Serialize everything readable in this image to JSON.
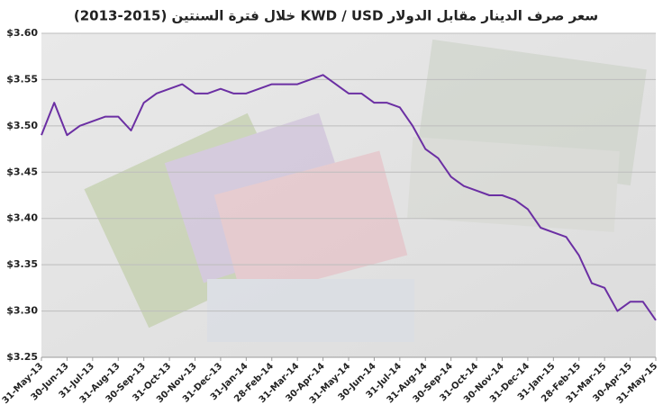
{
  "chart_data": {
    "type": "line",
    "title": "سعر صرف الدينار مقابل الدولار KWD / USD خلال فترة السنتين (2015-2013)",
    "categories": [
      "31-May-13",
      null,
      "30-Jun-13",
      null,
      "31-Jul-13",
      null,
      "31-Aug-13",
      null,
      "30-Sep-13",
      null,
      "31-Oct-13",
      null,
      "30-Nov-13",
      null,
      "31-Dec-13",
      null,
      "31-Jan-14",
      null,
      "28-Feb-14",
      null,
      "31-Mar-14",
      null,
      "30-Apr-14",
      null,
      "31-May-14",
      null,
      "30-Jun-14",
      null,
      "31-Jul-14",
      null,
      "31-Aug-14",
      null,
      "30-Sep-14",
      null,
      "31-Oct-14",
      null,
      "30-Nov-14",
      null,
      "31-Dec-14",
      null,
      "31-Jan-15",
      null,
      "28-Feb-15",
      null,
      "31-Mar-15",
      null,
      "30-Apr-15",
      null,
      "31-May-15"
    ],
    "values": [
      3.49,
      3.525,
      3.49,
      3.5,
      3.505,
      3.51,
      3.51,
      3.495,
      3.525,
      3.535,
      3.54,
      3.545,
      3.535,
      3.535,
      3.54,
      3.535,
      3.535,
      3.54,
      3.545,
      3.545,
      3.545,
      3.55,
      3.555,
      3.545,
      3.535,
      3.535,
      3.525,
      3.525,
      3.52,
      3.5,
      3.475,
      3.465,
      3.445,
      3.435,
      3.43,
      3.425,
      3.425,
      3.42,
      3.41,
      3.39,
      3.385,
      3.38,
      3.36,
      3.33,
      3.325,
      3.3,
      3.31,
      3.31,
      3.29
    ],
    "color": "#6b2fa3",
    "ylim": [
      3.25,
      3.6
    ],
    "yticks": [
      {
        "value": 3.25,
        "label": "$3.25"
      },
      {
        "value": 3.3,
        "label": "$3.30"
      },
      {
        "value": 3.35,
        "label": "$3.35"
      },
      {
        "value": 3.4,
        "label": "$3.40"
      },
      {
        "value": 3.45,
        "label": "$3.45"
      },
      {
        "value": 3.5,
        "label": "$3.50"
      },
      {
        "value": 3.55,
        "label": "$3.55"
      },
      {
        "value": 3.6,
        "label": "$3.60"
      }
    ],
    "grid": true
  }
}
